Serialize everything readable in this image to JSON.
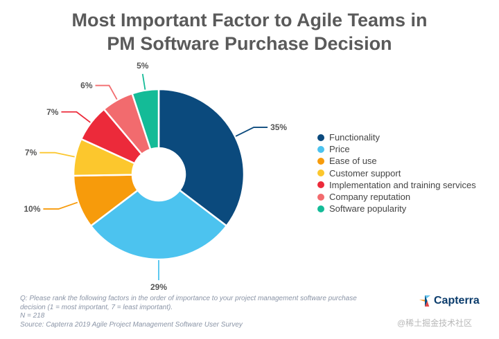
{
  "title_lines": [
    "Most Important Factor to Agile Teams in",
    "PM Software Purchase Decision"
  ],
  "chart_data": {
    "type": "pie",
    "variant": "donut",
    "title": "Most Important Factor to Agile Teams in PM Software Purchase Decision",
    "categories": [
      "Functionality",
      "Price",
      "Ease of use",
      "Customer support",
      "Implementation and training services",
      "Company reputation",
      "Software popularity"
    ],
    "values": [
      35,
      29,
      10,
      7,
      7,
      6,
      5
    ],
    "labels": [
      "35%",
      "29%",
      "10%",
      "7%",
      "7%",
      "6%",
      "5%"
    ],
    "colors": [
      "#0b4a7d",
      "#4cc3ef",
      "#f79b0b",
      "#fcc72d",
      "#ec2a3a",
      "#f26b6e",
      "#14bb97"
    ],
    "legend_position": "right"
  },
  "footnote": {
    "question_line1": "Q: Please rank the following factors in the order of importance to your project management software purchase",
    "question_line2": "decision (1 = most important, 7 = least important).",
    "n": "N = 218",
    "source": "Source: Capterra 2019 Agile Project Management Software User Survey"
  },
  "brand": {
    "name": "Capterra",
    "colors": [
      "#ff9d28",
      "#68c5ed",
      "#044d80",
      "#e54747"
    ]
  },
  "watermark": "@稀土掘金技术社区"
}
